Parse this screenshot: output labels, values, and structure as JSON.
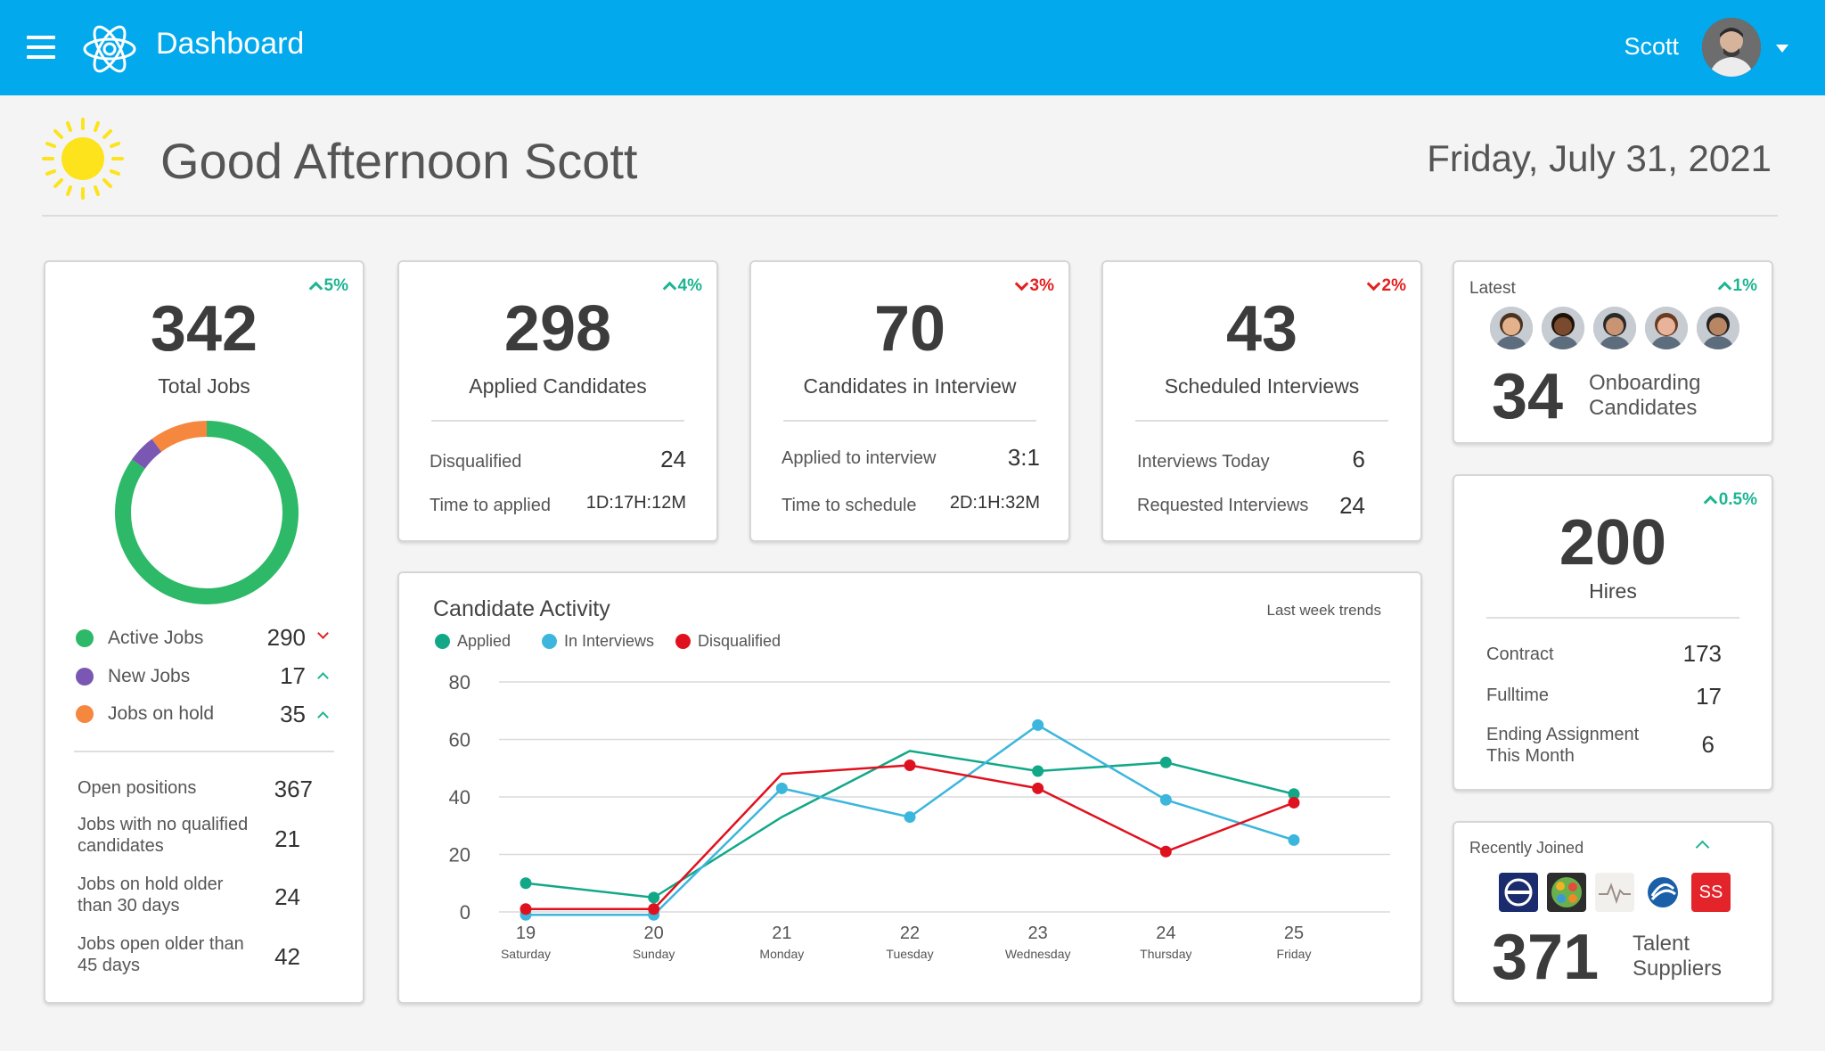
{
  "header": {
    "app_title": "Dashboard",
    "user_name": "Scott"
  },
  "greeting": {
    "text": "Good Afternoon Scott",
    "date": "Friday, July 31, 2021"
  },
  "total_jobs": {
    "value": "342",
    "label": "Total Jobs",
    "trend": "5%",
    "donut": {
      "active": 290,
      "new": 17,
      "on_hold": 35
    },
    "legend": [
      {
        "label": "Active Jobs",
        "value": "290",
        "color": "#2db967",
        "dir": "down"
      },
      {
        "label": "New Jobs",
        "value": "17",
        "color": "#7a57b3",
        "dir": "up"
      },
      {
        "label": "Jobs on hold",
        "value": "35",
        "color": "#f5873f",
        "dir": "up"
      }
    ],
    "rows": [
      {
        "label": "Open positions",
        "value": "367"
      },
      {
        "label": "Jobs with no qualified candidates",
        "value": "21"
      },
      {
        "label": "Jobs on hold older than 30 days",
        "value": "24"
      },
      {
        "label": "Jobs open older than 45 days",
        "value": "42"
      }
    ]
  },
  "applied": {
    "value": "298",
    "label": "Applied Candidates",
    "trend": "4%",
    "rows": [
      {
        "label": "Disqualified",
        "value": "24"
      },
      {
        "label": "Time to applied",
        "value": "1D:17H:12M"
      }
    ]
  },
  "interview": {
    "value": "70",
    "label": "Candidates in Interview",
    "trend": "3%",
    "rows": [
      {
        "label": "Applied to interview",
        "value": "3:1"
      },
      {
        "label": "Time to schedule",
        "value": "2D:1H:32M"
      }
    ]
  },
  "scheduled": {
    "value": "43",
    "label": "Scheduled Interviews",
    "trend": "2%",
    "rows": [
      {
        "label": "Interviews Today",
        "value": "6"
      },
      {
        "label": "Requested Interviews",
        "value": "24"
      }
    ]
  },
  "onboarding": {
    "latest_label": "Latest",
    "trend": "1%",
    "value": "34",
    "label_line1": "Onboarding",
    "label_line2": "Candidates"
  },
  "hires": {
    "value": "200",
    "label": "Hires",
    "trend": "0.5%",
    "rows": [
      {
        "label": "Contract",
        "value": "173"
      },
      {
        "label": "Fulltime",
        "value": "17"
      },
      {
        "label": "Ending Assignment This Month",
        "value": "6"
      }
    ]
  },
  "suppliers": {
    "recent_label": "Recently Joined",
    "value": "371",
    "label_line1": "Talent",
    "label_line2": "Suppliers",
    "ss_logo": "SS"
  },
  "activity": {
    "title": "Candidate Activity",
    "subtitle": "Last week trends",
    "legend": [
      "Applied",
      "In Interviews",
      "Disqualified"
    ]
  },
  "chart_data": {
    "type": "line",
    "title": "Candidate Activity",
    "x": [
      "19",
      "20",
      "21",
      "22",
      "23",
      "24",
      "25"
    ],
    "x_sublabels": [
      "Saturday",
      "Sunday",
      "Monday",
      "Tuesday",
      "Wednesday",
      "Thursday",
      "Friday"
    ],
    "ylim": [
      0,
      80
    ],
    "yticks": [
      0,
      20,
      40,
      60,
      80
    ],
    "grid": true,
    "legend_position": "top-left",
    "series": [
      {
        "name": "Applied",
        "color": "#12a887",
        "values": [
          10,
          5,
          33,
          56,
          49,
          52,
          41
        ],
        "markers": [
          true,
          true,
          false,
          false,
          true,
          true,
          true
        ]
      },
      {
        "name": "In Interviews",
        "color": "#3cb6dd",
        "values": [
          -1,
          -1,
          43,
          33,
          65,
          39,
          25
        ],
        "markers": [
          true,
          true,
          true,
          true,
          true,
          true,
          true
        ]
      },
      {
        "name": "Disqualified",
        "color": "#e0111e",
        "values": [
          1,
          1,
          48,
          51,
          43,
          21,
          38
        ],
        "markers": [
          true,
          true,
          false,
          true,
          true,
          true,
          true
        ]
      }
    ]
  }
}
